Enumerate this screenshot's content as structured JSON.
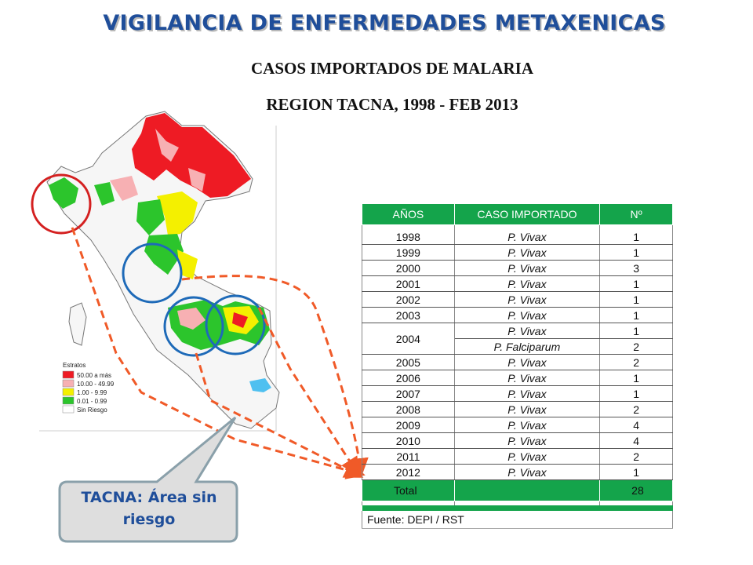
{
  "header": {
    "title": "VIGILANCIA DE ENFERMEDADES METAXENICAS",
    "subtitle1": "CASOS IMPORTADOS DE MALARIA",
    "subtitle2": "REGION TACNA, 1998  - FEB 2013"
  },
  "map": {
    "legend_title": "Estratos",
    "legend_items": [
      {
        "label": "50.00  a más",
        "color": "#ee1b24"
      },
      {
        "label": "10.00 - 49.99",
        "color": "#f7b0b3"
      },
      {
        "label": "1.00 - 9.99",
        "color": "#f4f000"
      },
      {
        "label": "0.01 - 0.99",
        "color": "#2cc52c"
      },
      {
        "label": "Sin Riesgo",
        "color": "#ffffff"
      }
    ],
    "callout": "TACNA: Área sin riesgo"
  },
  "table": {
    "headers": [
      "AÑOS",
      "CASO IMPORTADO",
      "Nº"
    ],
    "rows": [
      {
        "year": "1998",
        "caso": "P. Vivax",
        "n": "1"
      },
      {
        "year": "1999",
        "caso": "P. Vivax",
        "n": "1"
      },
      {
        "year": "2000",
        "caso": "P. Vivax",
        "n": "3"
      },
      {
        "year": "2001",
        "caso": "P. Vivax",
        "n": "1"
      },
      {
        "year": "2002",
        "caso": "P. Vivax",
        "n": "1"
      },
      {
        "year": "2003",
        "caso": "P. Vivax",
        "n": "1"
      },
      {
        "year": "2004",
        "caso": "P. Vivax",
        "n": "1"
      },
      {
        "year": "",
        "caso": "P. Falciparum",
        "n": "2"
      },
      {
        "year": "2005",
        "caso": "P. Vivax",
        "n": "2"
      },
      {
        "year": "2006",
        "caso": "P. Vivax",
        "n": "1"
      },
      {
        "year": "2007",
        "caso": "P. Vivax",
        "n": "1"
      },
      {
        "year": "2008",
        "caso": "P. Vivax",
        "n": "2"
      },
      {
        "year": "2009",
        "caso": "P. Vivax",
        "n": "4"
      },
      {
        "year": "2010",
        "caso": "P. Vivax",
        "n": "4"
      },
      {
        "year": "2011",
        "caso": "P. Vivax",
        "n": "2"
      },
      {
        "year": "2012",
        "caso": "P. Vivax",
        "n": "1"
      }
    ],
    "total_label": "Total",
    "total_value": "28",
    "source": "Fuente:  DEPI / RST"
  },
  "colors": {
    "title": "#1f4e9a",
    "table_green": "#14a44b",
    "arrow": "#f05a28",
    "circle_red": "#d42020",
    "circle_blue": "#1e6ab8"
  }
}
